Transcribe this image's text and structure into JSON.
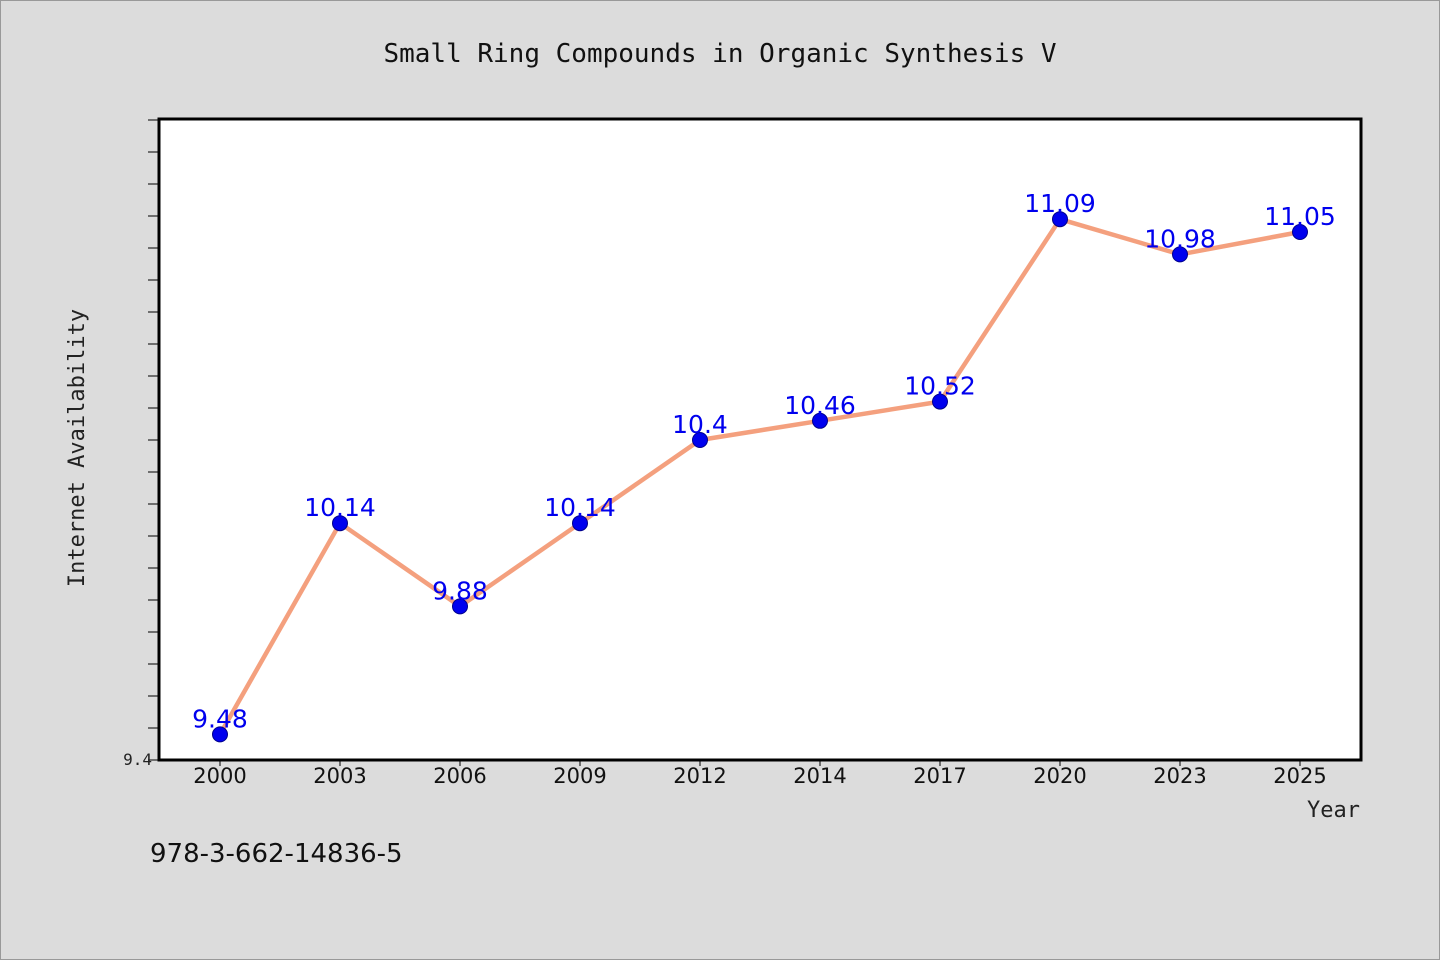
{
  "chart_data": {
    "type": "line",
    "title": "Small Ring Compounds in Organic Synthesis V",
    "xlabel": "Year",
    "ylabel": "Internet Availability",
    "categories": [
      "2000",
      "2003",
      "2006",
      "2009",
      "2012",
      "2014",
      "2017",
      "2020",
      "2023",
      "2025"
    ],
    "series": [
      {
        "values": [
          9.48,
          10.14,
          9.88,
          10.14,
          10.4,
          10.46,
          10.52,
          11.09,
          10.98,
          11.05
        ]
      }
    ],
    "data_labels": [
      "9.48",
      "10.14",
      "9.88",
      "10.14",
      "10.4",
      "10.46",
      "10.52",
      "11.09",
      "10.98",
      "11.05"
    ],
    "y_tick_labels": [
      {
        "value": 9.4,
        "label": "9.4"
      }
    ],
    "ylim": [
      9.4,
      11.4
    ],
    "y_minor_tick_step": 0.1,
    "grid": false,
    "legend": "none",
    "colors": {
      "line": "#f4a07e",
      "marker": "#0000ee",
      "data_label": "#0000ee",
      "plot_background": "#ffffff",
      "figure_background": "#dcdcdc"
    }
  },
  "footer": {
    "isbn": "978-3-662-14836-5"
  }
}
